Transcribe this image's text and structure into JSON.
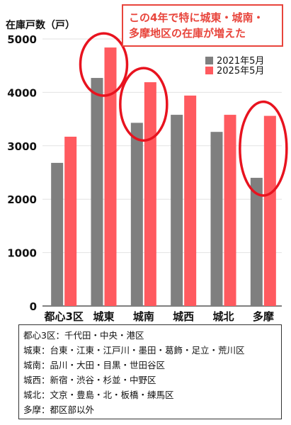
{
  "chart_data": {
    "type": "bar",
    "ylabel": "在庫戸数（戸）",
    "ylim": [
      0,
      5000
    ],
    "yticks": [
      0,
      1000,
      2000,
      3000,
      4000,
      5000
    ],
    "categories": [
      "都心3区",
      "城東",
      "城南",
      "城西",
      "城北",
      "多摩"
    ],
    "series": [
      {
        "name": "2021年5月",
        "color": "#7f7f7f",
        "values": [
          2680,
          4270,
          3430,
          3580,
          3260,
          2400
        ]
      },
      {
        "name": "2025年5月",
        "color": "#ff5a5f",
        "values": [
          3170,
          4840,
          4190,
          3940,
          3580,
          3560
        ]
      }
    ],
    "highlight_color": "#e8131f",
    "highlighted_categories": [
      "城東",
      "城南",
      "多摩"
    ],
    "annotation": [
      "この4年で特に城東・城南・",
      "多摩地区の在庫が増えた"
    ],
    "legend_position": "top-right"
  },
  "notes": [
    "都心3区：千代田・中央・港区",
    "城東：台東・江東・江戸川・墨田・葛飾・足立・荒川区",
    "城南：品川・大田・目黒・世田谷区",
    "城西：新宿・渋谷・杉並・中野区",
    "城北：文京・豊島・北・板橋・練馬区",
    "多摩：都区部以外"
  ]
}
